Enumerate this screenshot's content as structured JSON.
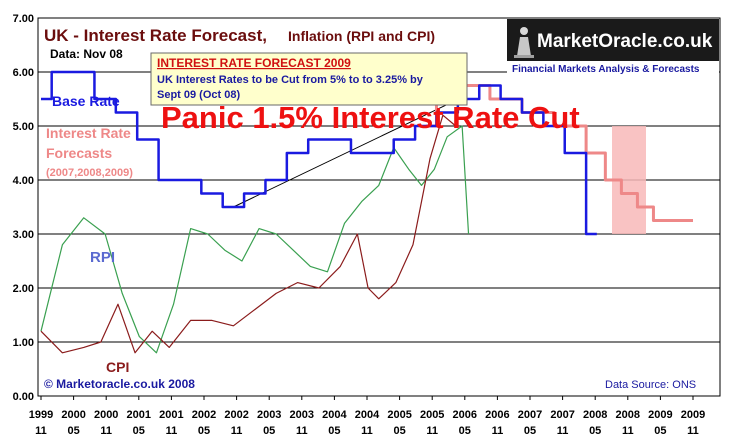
{
  "chart_data": {
    "type": "line",
    "title": "UK - Interest Rate Forecast,",
    "subtitle": "Inflation (RPI and CPI)",
    "date_label": "Data: Nov 08",
    "ylim": [
      0,
      7
    ],
    "yticks": [
      "0.00",
      "1.00",
      "2.00",
      "3.00",
      "4.00",
      "5.00",
      "6.00",
      "7.00"
    ],
    "xticks": [
      [
        "1999",
        "11"
      ],
      [
        "2000",
        "05"
      ],
      [
        "2000",
        "11"
      ],
      [
        "2001",
        "05"
      ],
      [
        "2001",
        "11"
      ],
      [
        "2002",
        "05"
      ],
      [
        "2002",
        "11"
      ],
      [
        "2003",
        "05"
      ],
      [
        "2003",
        "11"
      ],
      [
        "2004",
        "05"
      ],
      [
        "2004",
        "11"
      ],
      [
        "2005",
        "05"
      ],
      [
        "2005",
        "11"
      ],
      [
        "2006",
        "05"
      ],
      [
        "2006",
        "11"
      ],
      [
        "2007",
        "05"
      ],
      [
        "2007",
        "11"
      ],
      [
        "2008",
        "05"
      ],
      [
        "2008",
        "11"
      ],
      [
        "2009",
        "05"
      ],
      [
        "2009",
        "11"
      ]
    ],
    "grid": "horizontal",
    "series": [
      {
        "name": "Base Rate",
        "color": "#1a1ae0",
        "points": [
          [
            0,
            5.5
          ],
          [
            1,
            6.0
          ],
          [
            2,
            6.0
          ],
          [
            3,
            5.5
          ],
          [
            4,
            5.25
          ],
          [
            5,
            4.75
          ],
          [
            6,
            4.0
          ],
          [
            7,
            4.0
          ],
          [
            8,
            3.75
          ],
          [
            9,
            3.5
          ],
          [
            10,
            3.75
          ],
          [
            11,
            4.0
          ],
          [
            12,
            4.5
          ],
          [
            13,
            4.75
          ],
          [
            14,
            4.75
          ],
          [
            15,
            4.5
          ],
          [
            16,
            4.5
          ],
          [
            17,
            4.75
          ],
          [
            18,
            5.0
          ],
          [
            19,
            5.25
          ],
          [
            20,
            5.5
          ],
          [
            21,
            5.75
          ],
          [
            22,
            5.5
          ],
          [
            23,
            5.25
          ],
          [
            24,
            5.0
          ],
          [
            25,
            4.5
          ],
          [
            26,
            3.0
          ]
        ]
      },
      {
        "name": "Interest Rate Forecasts",
        "sublabel": "(2007,2008,2009)",
        "color": "#ee8888",
        "points": [
          [
            18,
            5.0
          ],
          [
            19,
            5.5
          ],
          [
            20,
            5.75
          ],
          [
            22,
            5.5
          ],
          [
            23,
            5.25
          ],
          [
            25,
            5.0
          ],
          [
            26,
            4.5
          ],
          [
            26.8,
            4.0
          ],
          [
            27.5,
            3.75
          ],
          [
            28.3,
            3.5
          ],
          [
            29,
            3.25
          ],
          [
            30.5,
            3.25
          ]
        ]
      },
      {
        "name": "RPI",
        "color": "#3aa050",
        "points": [
          [
            0,
            1.2
          ],
          [
            1,
            2.8
          ],
          [
            2,
            3.3
          ],
          [
            3,
            3.0
          ],
          [
            3.8,
            1.9
          ],
          [
            4.6,
            1.1
          ],
          [
            5.4,
            0.8
          ],
          [
            6.2,
            1.7
          ],
          [
            7.0,
            3.1
          ],
          [
            7.8,
            3.0
          ],
          [
            8.6,
            2.7
          ],
          [
            9.4,
            2.5
          ],
          [
            10.2,
            3.1
          ],
          [
            11,
            3.0
          ],
          [
            11.8,
            2.7
          ],
          [
            12.6,
            2.4
          ],
          [
            13.4,
            2.3
          ],
          [
            14.2,
            3.2
          ],
          [
            15,
            3.6
          ],
          [
            15.8,
            3.9
          ],
          [
            16.5,
            4.6
          ],
          [
            17.2,
            4.2
          ],
          [
            17.8,
            3.9
          ],
          [
            18.4,
            4.2
          ],
          [
            19,
            4.8
          ],
          [
            19.7,
            5.0
          ],
          [
            20,
            3.0
          ]
        ]
      },
      {
        "name": "CPI",
        "color": "#8b1c1c",
        "points": [
          [
            0,
            1.2
          ],
          [
            1,
            0.8
          ],
          [
            2,
            0.9
          ],
          [
            2.8,
            1.0
          ],
          [
            3.6,
            1.7
          ],
          [
            4.4,
            0.8
          ],
          [
            5.2,
            1.2
          ],
          [
            6,
            0.9
          ],
          [
            7,
            1.4
          ],
          [
            8,
            1.4
          ],
          [
            9,
            1.3
          ],
          [
            10,
            1.6
          ],
          [
            11,
            1.9
          ],
          [
            12,
            2.1
          ],
          [
            13,
            2.0
          ],
          [
            14,
            2.4
          ],
          [
            14.8,
            3.0
          ],
          [
            15.3,
            2.0
          ],
          [
            15.8,
            1.8
          ],
          [
            16.6,
            2.1
          ],
          [
            17.4,
            2.8
          ],
          [
            18.2,
            4.4
          ],
          [
            18.8,
            5.2
          ],
          [
            19.4,
            5.0
          ]
        ]
      }
    ],
    "trend_line": [
      [
        9,
        3.5
      ],
      [
        19.8,
        5.55
      ]
    ],
    "series_labels": {
      "base_rate": "Base Rate",
      "forecasts": "Interest Rate",
      "forecasts2": "Forecasts",
      "forecasts3": "(2007,2008,2009)",
      "rpi": "RPI",
      "cpi": "CPI"
    }
  },
  "annotations": {
    "forecast_box_title": "INTEREST RATE FORECAST 2009",
    "forecast_box_line1": "UK Interest Rates to be Cut from 5% to  to 3.25% by",
    "forecast_box_line2": "Sept 09 (Oct 08)",
    "panic_label": "Panic 1.5% Interest Rate Cut"
  },
  "footer": {
    "copyright": "© Marketoracle.co.uk 2008",
    "source": "Data Source: ONS"
  },
  "logo": {
    "name": "MarketOracle.co.uk",
    "tagline": "Financial Markets Analysis & Forecasts"
  },
  "colors": {
    "base_rate": "#1a1ae0",
    "forecast": "#ee8888",
    "rpi": "#3aa050",
    "cpi": "#8b1c1c",
    "panic_band": "#f8b8b8",
    "box_bg": "#ffffcc"
  }
}
